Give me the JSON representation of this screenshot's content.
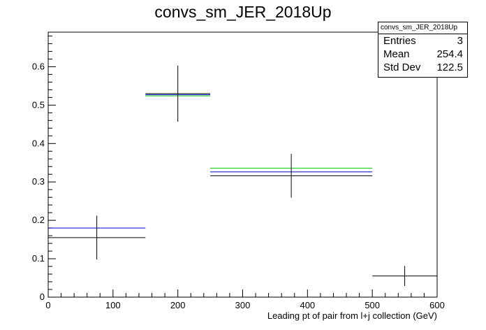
{
  "chart_data": {
    "type": "histogram",
    "title": "convs_sm_JER_2018Up",
    "xlabel": "Leading pt of pair from l+j collection (GeV)",
    "ylabel": "",
    "xlim": [
      0,
      600
    ],
    "ylim": [
      0,
      0.69
    ],
    "x_ticks": [
      0,
      100,
      200,
      300,
      400,
      500,
      600
    ],
    "y_ticks": [
      0,
      0.1,
      0.2,
      0.3,
      0.4,
      0.5,
      0.6
    ],
    "bins": [
      [
        0,
        150
      ],
      [
        150,
        250
      ],
      [
        250,
        500
      ],
      [
        500,
        600
      ]
    ],
    "series": [
      {
        "color": "#000000",
        "values": [
          0.155,
          0.53,
          0.316,
          0.055
        ],
        "errors": [
          0.057,
          0.073,
          0.057,
          0.026
        ]
      },
      {
        "color": "#0000cc",
        "values": [
          0.18,
          0.527,
          0.326,
          null
        ]
      },
      {
        "color": "#00cc00",
        "values": [
          null,
          0.524,
          0.336,
          null
        ]
      }
    ],
    "stats_box": {
      "title": "convs_sm_JER_2018Up",
      "entries_label": "Entries",
      "entries": "3",
      "mean_label": "Mean",
      "mean": "254.4",
      "stddev_label": "Std Dev",
      "stddev": "122.5"
    },
    "grid": false,
    "legend": "none"
  }
}
